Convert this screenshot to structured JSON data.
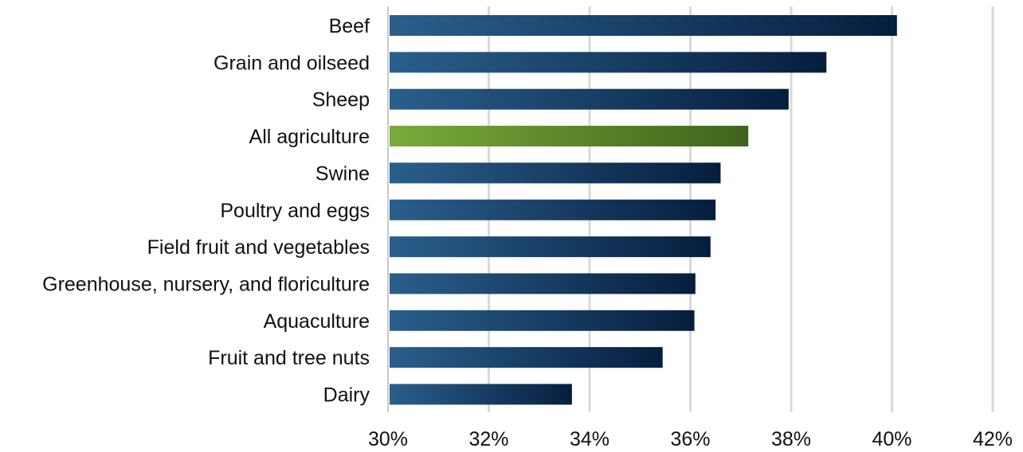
{
  "chart_data": {
    "type": "bar",
    "orientation": "horizontal",
    "categories": [
      "Beef",
      "Grain and oilseed",
      "Sheep",
      "All agriculture",
      "Swine",
      "Poultry and eggs",
      "Field fruit and vegetables",
      "Greenhouse, nursery, and floriculture",
      "Aquaculture",
      "Fruit and tree nuts",
      "Dairy"
    ],
    "values": [
      40.1,
      38.7,
      37.95,
      37.15,
      36.6,
      36.5,
      36.4,
      36.1,
      36.08,
      35.45,
      33.65
    ],
    "highlight": "All agriculture",
    "xlim": [
      30,
      42
    ],
    "xticks": [
      30,
      32,
      34,
      36,
      38,
      40,
      42
    ],
    "xtick_labels": [
      "30%",
      "32%",
      "34%",
      "36%",
      "38%",
      "40%",
      "42%"
    ],
    "grid": "vertical",
    "colors": {
      "bar_start": "#2a5f8c",
      "bar_end": "#061e3e",
      "highlight_start": "#7aaa3a",
      "highlight_end": "#3e641c"
    }
  }
}
